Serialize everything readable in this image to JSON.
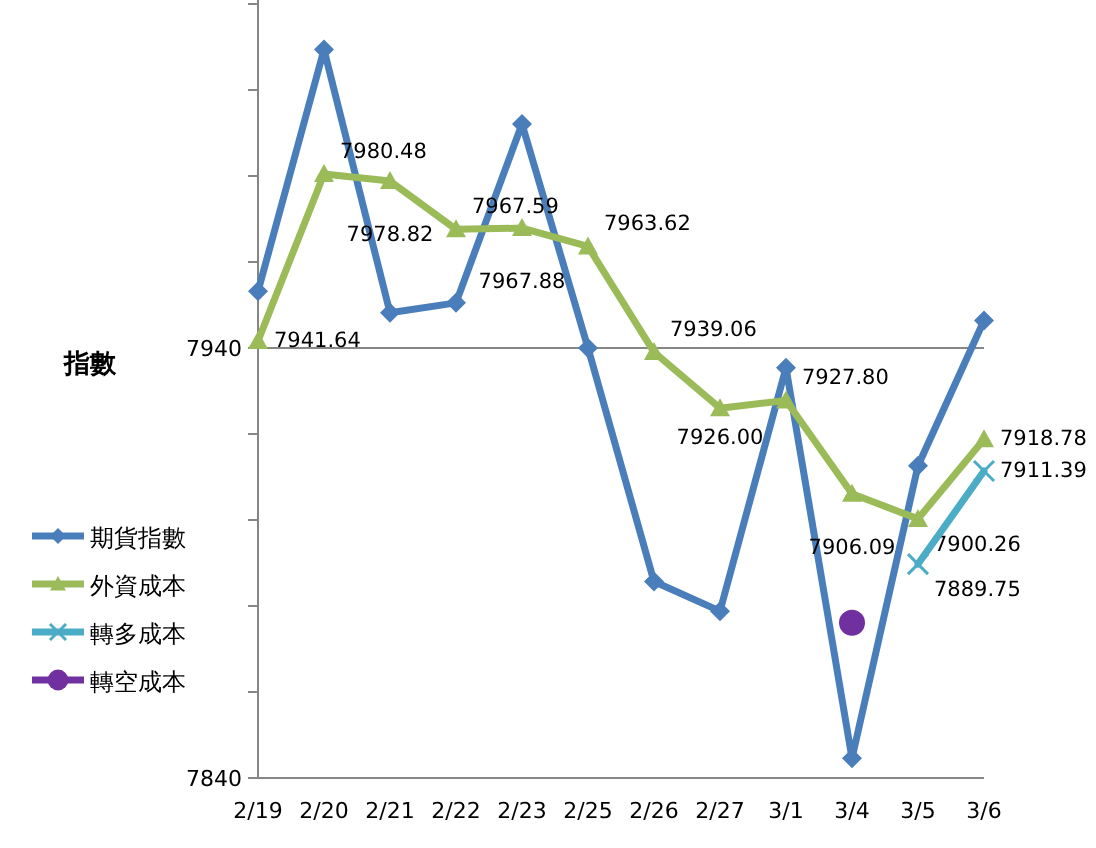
{
  "chart_data": {
    "type": "line",
    "ylabel": "指數",
    "categories": [
      "2/19",
      "2/20",
      "2/21",
      "2/22",
      "2/23",
      "2/25",
      "2/26",
      "2/27",
      "3/1",
      "3/4",
      "3/5",
      "3/6"
    ],
    "series": [
      {
        "name": "期貨指數",
        "color": "#4a7ebb",
        "marker": "diamond",
        "values": [
          7953.2,
          8009.4,
          7948.2,
          7950.5,
          7992.1,
          7940,
          7885.7,
          7878.8,
          7935.4,
          7844.6,
          7912.6,
          7946.4
        ]
      },
      {
        "name": "外資成本",
        "color": "#9bbb59",
        "marker": "triangle",
        "values": [
          7941.64,
          7980.48,
          7978.82,
          7967.59,
          7967.88,
          7963.62,
          7939.06,
          7926.0,
          7927.8,
          7906.09,
          7900.26,
          7918.78
        ],
        "value_labels": [
          "7941.64",
          "7980.48",
          "7978.82",
          "7967.59",
          "7967.88",
          "7963.62",
          "7939.06",
          "7926.00",
          "7927.80",
          "7906.09",
          "7900.26",
          "7918.78"
        ]
      },
      {
        "name": "轉多成本",
        "color": "#4bacc6",
        "marker": "cross",
        "values": [
          null,
          null,
          null,
          null,
          null,
          null,
          null,
          null,
          null,
          null,
          7889.75,
          7911.39
        ],
        "value_labels": [
          null,
          null,
          null,
          null,
          null,
          null,
          null,
          null,
          null,
          null,
          "7889.75",
          "7911.39"
        ]
      },
      {
        "name": "轉空成本",
        "color": "#7030a0",
        "marker": "circle",
        "values": [
          null,
          null,
          null,
          null,
          null,
          null,
          null,
          null,
          null,
          7876.1,
          null,
          null
        ]
      }
    ],
    "ylim": [
      7840,
      8020
    ],
    "yticks": [
      7840,
      {
        "value": 7860,
        "label": null
      },
      {
        "value": 7880,
        "label": null
      },
      {
        "value": 7900,
        "label": null
      },
      {
        "value": 7920,
        "label": null
      },
      7940,
      {
        "value": 7960,
        "label": null
      },
      {
        "value": 7980,
        "label": null
      },
      {
        "value": 8000,
        "label": null
      },
      {
        "value": 8020,
        "label": null
      }
    ],
    "grid": "y",
    "legend": "left"
  }
}
